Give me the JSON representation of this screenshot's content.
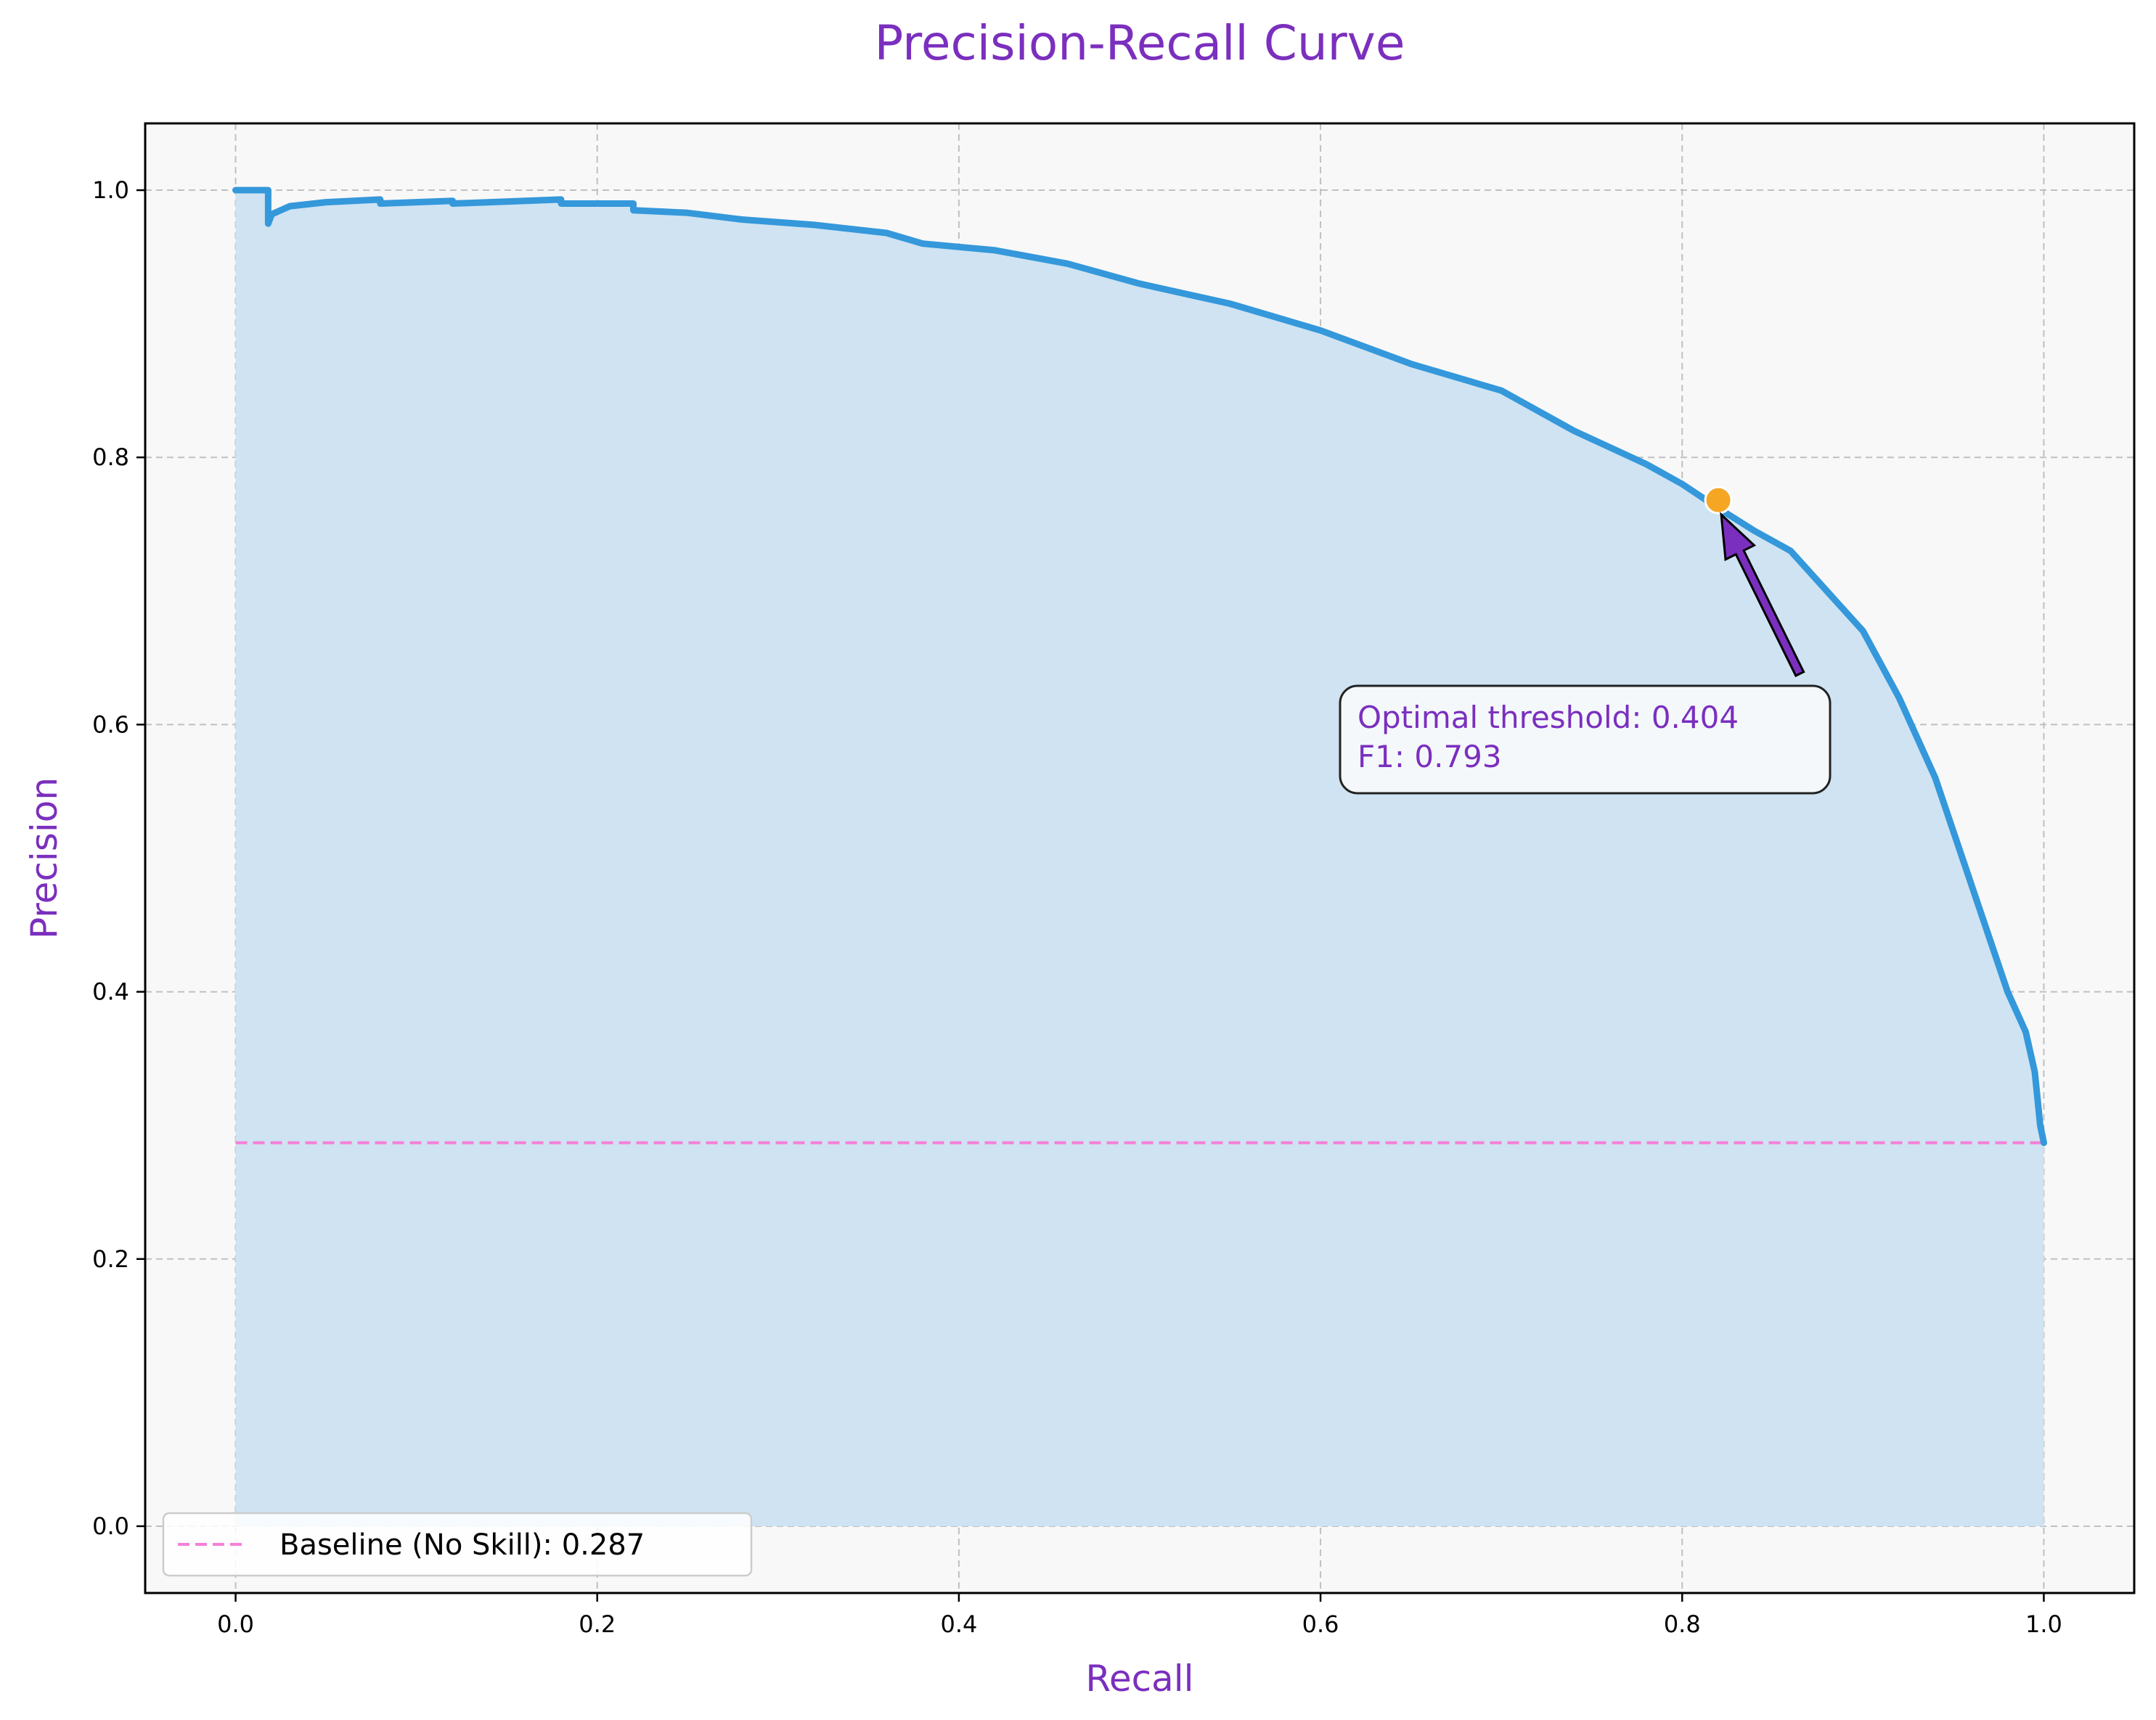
{
  "chart_data": {
    "type": "line",
    "title": "Precision-Recall Curve",
    "xlabel": "Recall",
    "ylabel": "Precision",
    "xlim": [
      -0.05,
      1.05
    ],
    "ylim": [
      -0.05,
      1.05
    ],
    "xticks": [
      0.0,
      0.2,
      0.4,
      0.6,
      0.8,
      1.0
    ],
    "yticks": [
      0.0,
      0.2,
      0.4,
      0.6,
      0.8,
      1.0
    ],
    "xtick_labels": [
      "0.0",
      "0.2",
      "0.4",
      "0.6",
      "0.8",
      "1.0"
    ],
    "ytick_labels": [
      "0.0",
      "0.2",
      "0.4",
      "0.6",
      "0.8",
      "1.0"
    ],
    "grid": true,
    "legend_position": "lower-left",
    "series": [
      {
        "name": "",
        "fill_under": true,
        "x": [
          0.0,
          0.018,
          0.018,
          0.02,
          0.03,
          0.05,
          0.08,
          0.08,
          0.12,
          0.12,
          0.18,
          0.18,
          0.22,
          0.22,
          0.25,
          0.28,
          0.32,
          0.36,
          0.38,
          0.42,
          0.46,
          0.5,
          0.55,
          0.6,
          0.65,
          0.7,
          0.74,
          0.78,
          0.8,
          0.82,
          0.84,
          0.86,
          0.88,
          0.9,
          0.92,
          0.94,
          0.95,
          0.96,
          0.97,
          0.98,
          0.99,
          0.995,
          0.998,
          1.0
        ],
        "y": [
          1.0,
          1.0,
          0.975,
          0.982,
          0.988,
          0.991,
          0.993,
          0.99,
          0.992,
          0.99,
          0.993,
          0.99,
          0.99,
          0.985,
          0.983,
          0.978,
          0.974,
          0.968,
          0.96,
          0.955,
          0.945,
          0.93,
          0.915,
          0.895,
          0.87,
          0.85,
          0.82,
          0.795,
          0.78,
          0.762,
          0.745,
          0.73,
          0.7,
          0.67,
          0.62,
          0.56,
          0.52,
          0.48,
          0.44,
          0.4,
          0.37,
          0.34,
          0.3,
          0.287
        ],
        "color": "#3498db"
      },
      {
        "name": "Baseline (No Skill): 0.287",
        "style": "dashed",
        "x": [
          0.0,
          1.0
        ],
        "y": [
          0.287,
          0.287
        ],
        "color": "#f57fd8"
      }
    ],
    "optimal_point": {
      "x": 0.82,
      "y": 0.768,
      "color": "#f5a623"
    },
    "annotation": {
      "lines": [
        "Optimal threshold: 0.404",
        "F1: 0.793"
      ],
      "text_anchor": {
        "x": 0.865,
        "y": 0.638
      },
      "arrow_to": {
        "x": 0.82,
        "y": 0.768
      },
      "arrow_color": "#7b2fbe",
      "text_color": "#7b2fbe"
    },
    "colors": {
      "title": "#7b2fbe",
      "axis_title": "#7b2fbe",
      "fill": "#cfe3f2",
      "plot_bg": "#f8f8f8",
      "grid": "#c0c0c0"
    }
  }
}
